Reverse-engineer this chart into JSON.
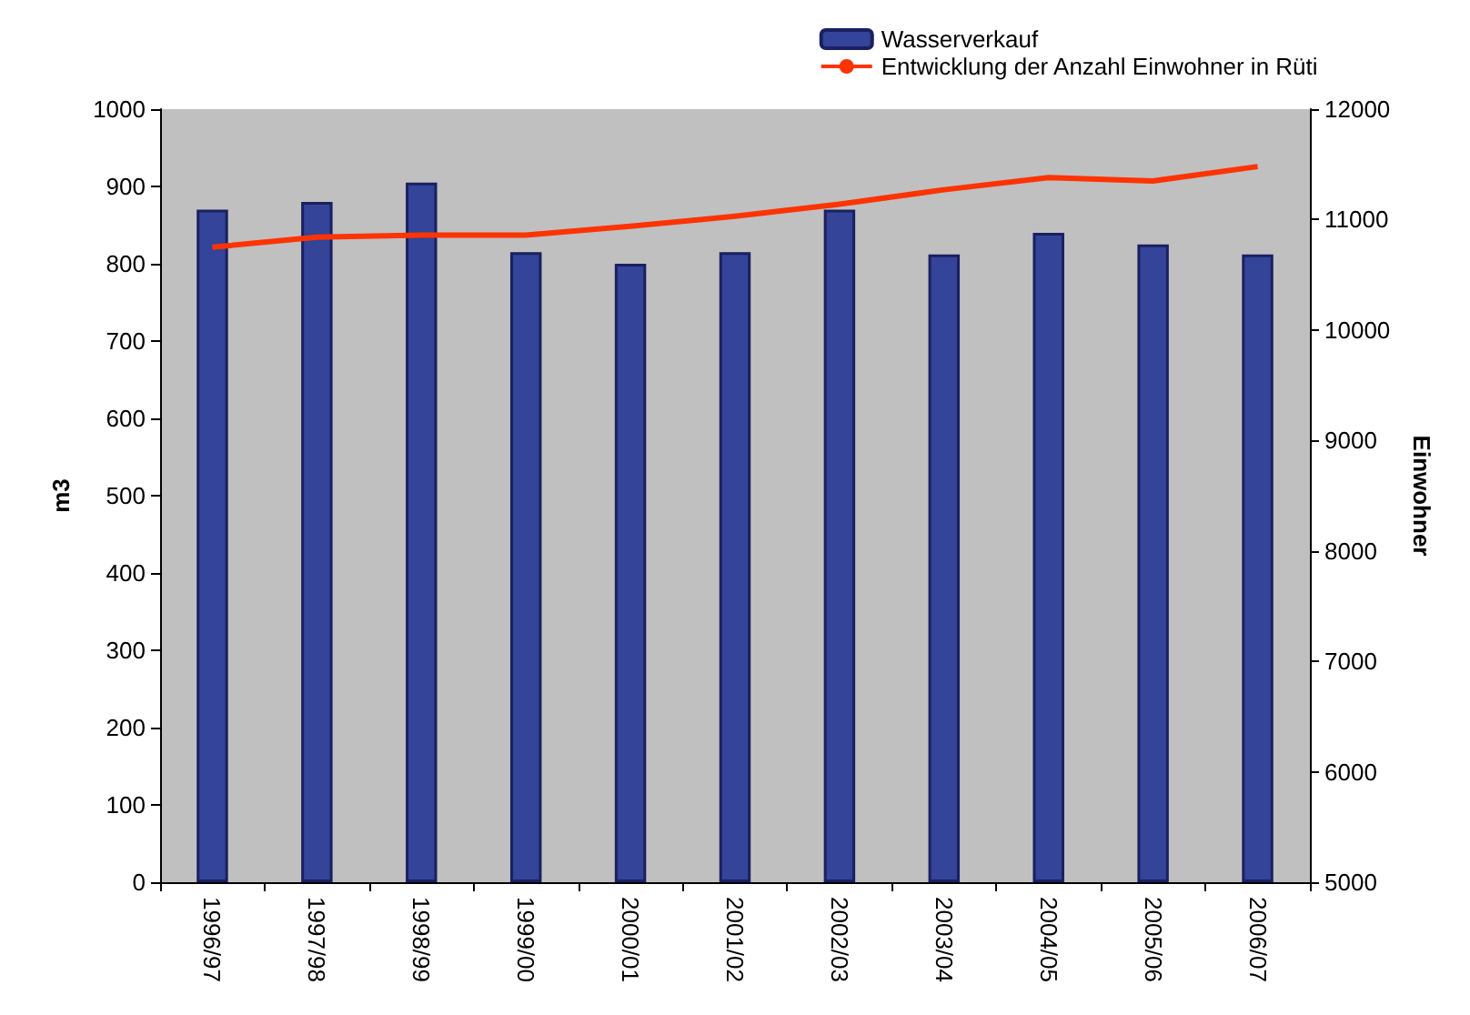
{
  "chart_data": {
    "type": "bar",
    "categories": [
      "1996/97",
      "1997/98",
      "1998/99",
      "1999/00",
      "2000/01",
      "2001/02",
      "2002/03",
      "2003/04",
      "2004/05",
      "2005/06",
      "2006/07"
    ],
    "series": [
      {
        "name": "Wasserverkauf",
        "color": "#334499",
        "values": [
          870,
          880,
          905,
          815,
          800,
          815,
          870,
          812,
          840,
          825,
          812
        ]
      },
      {
        "name": "Entwicklung der Anzahl Einwohner in Rüti",
        "type": "line",
        "axis": "y2",
        "color": "#ff3300",
        "values": [
          10750,
          10840,
          10860,
          10860,
          10940,
          11030,
          11140,
          11270,
          11380,
          11350,
          11480
        ]
      }
    ],
    "ylabel": "m3",
    "y2label": "Einwohner",
    "ylim": [
      0,
      1000
    ],
    "yticks": [
      0,
      100,
      200,
      300,
      400,
      500,
      600,
      700,
      800,
      900,
      1000
    ],
    "y2lim": [
      5000,
      12000
    ],
    "y2ticks": [
      5000,
      6000,
      7000,
      8000,
      9000,
      10000,
      11000,
      12000
    ],
    "grid": false,
    "legend": "top right",
    "marker": "none",
    "line_style": "solid"
  }
}
